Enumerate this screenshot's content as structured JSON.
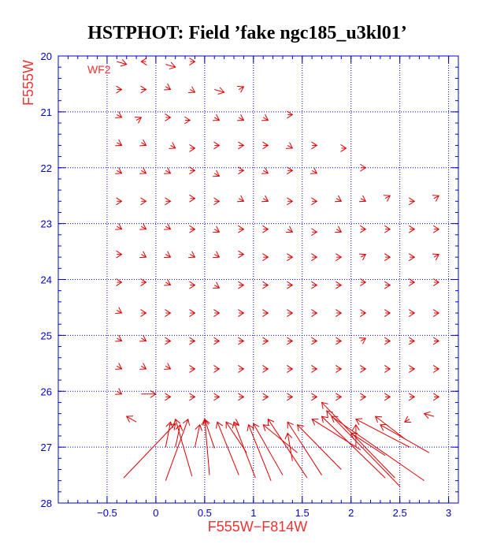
{
  "colors": {
    "axis": "#0000cc",
    "data": "#dd0000",
    "label": "#ee3333",
    "title": "#000000",
    "background": "#ffffff"
  },
  "chart_data": {
    "type": "scatter",
    "title": "HSTPHOT: Field ’fake ngc185_u3kl01’",
    "xlabel": "F555W−F814W",
    "ylabel": "F555W",
    "annotation": "WF2",
    "xlim": [
      -1.0,
      3.1
    ],
    "ylim": [
      28,
      20
    ],
    "y_inverted": true,
    "grid": true,
    "grid_style": "dotted",
    "xticks": [
      -0.5,
      0,
      0.5,
      1,
      1.5,
      2,
      2.5,
      3
    ],
    "xtick_labels": [
      "−0.5",
      "0",
      "0.5",
      "1",
      "1.5",
      "2",
      "2.5",
      "3"
    ],
    "yticks": [
      20,
      21,
      22,
      23,
      24,
      25,
      26,
      27,
      28
    ],
    "ytick_labels": [
      "20",
      "21",
      "22",
      "23",
      "24",
      "25",
      "26",
      "27",
      "28"
    ],
    "series_description": "Input-to-output offset vectors for artificial stars; each vector runs from the recovered (x1,y1) to the input (x2,y2) color-magnitude position",
    "vectors": [
      {
        "x1": -0.4,
        "y1": 20.1,
        "x2": -0.3,
        "y2": 20.15
      },
      {
        "x1": -0.1,
        "y1": 20.1,
        "x2": -0.15,
        "y2": 20.1
      },
      {
        "x1": 0.1,
        "y1": 20.15,
        "x2": 0.2,
        "y2": 20.2
      },
      {
        "x1": 0.35,
        "y1": 20.1,
        "x2": 0.4,
        "y2": 20.1
      },
      {
        "x1": -0.4,
        "y1": 20.6,
        "x2": -0.35,
        "y2": 20.6
      },
      {
        "x1": -0.15,
        "y1": 20.6,
        "x2": -0.1,
        "y2": 20.6
      },
      {
        "x1": 0.1,
        "y1": 20.55,
        "x2": 0.15,
        "y2": 20.6
      },
      {
        "x1": 0.35,
        "y1": 20.6,
        "x2": 0.4,
        "y2": 20.65
      },
      {
        "x1": 0.6,
        "y1": 20.6,
        "x2": 0.7,
        "y2": 20.65
      },
      {
        "x1": 0.85,
        "y1": 20.6,
        "x2": 0.9,
        "y2": 20.55
      },
      {
        "x1": -0.4,
        "y1": 21.05,
        "x2": -0.35,
        "y2": 21.1
      },
      {
        "x1": -0.2,
        "y1": 21.15,
        "x2": -0.15,
        "y2": 21.1
      },
      {
        "x1": 0.1,
        "y1": 21.1,
        "x2": 0.15,
        "y2": 21.1
      },
      {
        "x1": 0.3,
        "y1": 21.15,
        "x2": 0.35,
        "y2": 21.15
      },
      {
        "x1": 0.6,
        "y1": 21.1,
        "x2": 0.65,
        "y2": 21.15
      },
      {
        "x1": 0.85,
        "y1": 21.1,
        "x2": 0.9,
        "y2": 21.15
      },
      {
        "x1": 1.1,
        "y1": 21.1,
        "x2": 1.15,
        "y2": 21.15
      },
      {
        "x1": 1.35,
        "y1": 21.05,
        "x2": 1.4,
        "y2": 21.05
      },
      {
        "x1": -0.4,
        "y1": 21.55,
        "x2": -0.35,
        "y2": 21.6
      },
      {
        "x1": -0.15,
        "y1": 21.55,
        "x2": -0.1,
        "y2": 21.6
      },
      {
        "x1": 0.15,
        "y1": 21.6,
        "x2": 0.2,
        "y2": 21.65
      },
      {
        "x1": 0.35,
        "y1": 21.65,
        "x2": 0.4,
        "y2": 21.65
      },
      {
        "x1": 0.6,
        "y1": 21.6,
        "x2": 0.65,
        "y2": 21.6
      },
      {
        "x1": 0.85,
        "y1": 21.6,
        "x2": 0.9,
        "y2": 21.6
      },
      {
        "x1": 1.1,
        "y1": 21.6,
        "x2": 1.15,
        "y2": 21.6
      },
      {
        "x1": 1.35,
        "y1": 21.6,
        "x2": 1.4,
        "y2": 21.65
      },
      {
        "x1": 1.6,
        "y1": 21.6,
        "x2": 1.65,
        "y2": 21.6
      },
      {
        "x1": 1.9,
        "y1": 21.65,
        "x2": 1.95,
        "y2": 21.65
      },
      {
        "x1": -0.4,
        "y1": 22.05,
        "x2": -0.35,
        "y2": 22.1
      },
      {
        "x1": -0.15,
        "y1": 22.05,
        "x2": -0.1,
        "y2": 22.1
      },
      {
        "x1": 0.1,
        "y1": 22.05,
        "x2": 0.15,
        "y2": 22.1
      },
      {
        "x1": 0.35,
        "y1": 22.05,
        "x2": 0.4,
        "y2": 22.05
      },
      {
        "x1": 0.6,
        "y1": 22.1,
        "x2": 0.65,
        "y2": 22.15
      },
      {
        "x1": 0.85,
        "y1": 22.05,
        "x2": 0.9,
        "y2": 22.05
      },
      {
        "x1": 1.1,
        "y1": 22.05,
        "x2": 1.15,
        "y2": 22.1
      },
      {
        "x1": 1.35,
        "y1": 22.05,
        "x2": 1.4,
        "y2": 22.05
      },
      {
        "x1": 1.6,
        "y1": 22.05,
        "x2": 1.65,
        "y2": 22.1
      },
      {
        "x1": 2.1,
        "y1": 22.0,
        "x2": 2.15,
        "y2": 22.0
      },
      {
        "x1": -0.4,
        "y1": 22.6,
        "x2": -0.35,
        "y2": 22.6
      },
      {
        "x1": -0.15,
        "y1": 22.6,
        "x2": -0.1,
        "y2": 22.6
      },
      {
        "x1": 0.1,
        "y1": 22.6,
        "x2": 0.15,
        "y2": 22.6
      },
      {
        "x1": 0.35,
        "y1": 22.55,
        "x2": 0.4,
        "y2": 22.55
      },
      {
        "x1": 0.6,
        "y1": 22.6,
        "x2": 0.65,
        "y2": 22.6
      },
      {
        "x1": 0.85,
        "y1": 22.55,
        "x2": 0.9,
        "y2": 22.6
      },
      {
        "x1": 1.1,
        "y1": 22.55,
        "x2": 1.15,
        "y2": 22.6
      },
      {
        "x1": 1.35,
        "y1": 22.6,
        "x2": 1.4,
        "y2": 22.6
      },
      {
        "x1": 1.6,
        "y1": 22.6,
        "x2": 1.65,
        "y2": 22.6
      },
      {
        "x1": 1.85,
        "y1": 22.55,
        "x2": 1.9,
        "y2": 22.6
      },
      {
        "x1": 2.1,
        "y1": 22.55,
        "x2": 2.15,
        "y2": 22.6
      },
      {
        "x1": 2.35,
        "y1": 22.55,
        "x2": 2.4,
        "y2": 22.5
      },
      {
        "x1": 2.6,
        "y1": 22.6,
        "x2": 2.65,
        "y2": 22.6
      },
      {
        "x1": 2.85,
        "y1": 22.55,
        "x2": 2.9,
        "y2": 22.5
      },
      {
        "x1": -0.4,
        "y1": 23.05,
        "x2": -0.35,
        "y2": 23.1
      },
      {
        "x1": -0.15,
        "y1": 23.05,
        "x2": -0.1,
        "y2": 23.1
      },
      {
        "x1": 0.1,
        "y1": 23.05,
        "x2": 0.15,
        "y2": 23.1
      },
      {
        "x1": 0.35,
        "y1": 23.1,
        "x2": 0.4,
        "y2": 23.1
      },
      {
        "x1": 0.6,
        "y1": 23.1,
        "x2": 0.65,
        "y2": 23.15
      },
      {
        "x1": 0.85,
        "y1": 23.1,
        "x2": 0.9,
        "y2": 23.1
      },
      {
        "x1": 1.1,
        "y1": 23.1,
        "x2": 1.15,
        "y2": 23.1
      },
      {
        "x1": 1.35,
        "y1": 23.1,
        "x2": 1.4,
        "y2": 23.15
      },
      {
        "x1": 1.6,
        "y1": 23.15,
        "x2": 1.65,
        "y2": 23.15
      },
      {
        "x1": 1.85,
        "y1": 23.1,
        "x2": 1.9,
        "y2": 23.15
      },
      {
        "x1": 2.1,
        "y1": 23.1,
        "x2": 2.15,
        "y2": 23.1
      },
      {
        "x1": 2.35,
        "y1": 23.1,
        "x2": 2.4,
        "y2": 23.1
      },
      {
        "x1": 2.6,
        "y1": 23.1,
        "x2": 2.65,
        "y2": 23.1
      },
      {
        "x1": 2.85,
        "y1": 23.1,
        "x2": 2.9,
        "y2": 23.1
      },
      {
        "x1": -0.4,
        "y1": 23.55,
        "x2": -0.35,
        "y2": 23.55
      },
      {
        "x1": -0.15,
        "y1": 23.55,
        "x2": -0.1,
        "y2": 23.6
      },
      {
        "x1": 0.1,
        "y1": 23.55,
        "x2": 0.15,
        "y2": 23.6
      },
      {
        "x1": 0.35,
        "y1": 23.55,
        "x2": 0.4,
        "y2": 23.6
      },
      {
        "x1": 0.6,
        "y1": 23.55,
        "x2": 0.65,
        "y2": 23.6
      },
      {
        "x1": 0.85,
        "y1": 23.55,
        "x2": 0.9,
        "y2": 23.55
      },
      {
        "x1": 1.1,
        "y1": 23.6,
        "x2": 1.15,
        "y2": 23.6
      },
      {
        "x1": 1.35,
        "y1": 23.6,
        "x2": 1.4,
        "y2": 23.6
      },
      {
        "x1": 1.6,
        "y1": 23.6,
        "x2": 1.65,
        "y2": 23.6
      },
      {
        "x1": 1.85,
        "y1": 23.6,
        "x2": 1.9,
        "y2": 23.6
      },
      {
        "x1": 2.1,
        "y1": 23.6,
        "x2": 2.15,
        "y2": 23.55
      },
      {
        "x1": 2.35,
        "y1": 23.6,
        "x2": 2.4,
        "y2": 23.6
      },
      {
        "x1": 2.6,
        "y1": 23.6,
        "x2": 2.65,
        "y2": 23.6
      },
      {
        "x1": 2.85,
        "y1": 23.6,
        "x2": 2.9,
        "y2": 23.55
      },
      {
        "x1": -0.4,
        "y1": 24.05,
        "x2": -0.35,
        "y2": 24.05
      },
      {
        "x1": -0.15,
        "y1": 24.05,
        "x2": -0.1,
        "y2": 24.05
      },
      {
        "x1": 0.1,
        "y1": 24.05,
        "x2": 0.15,
        "y2": 24.1
      },
      {
        "x1": 0.35,
        "y1": 24.1,
        "x2": 0.4,
        "y2": 24.1
      },
      {
        "x1": 0.6,
        "y1": 24.1,
        "x2": 0.65,
        "y2": 24.15
      },
      {
        "x1": 0.85,
        "y1": 24.1,
        "x2": 0.9,
        "y2": 24.1
      },
      {
        "x1": 1.1,
        "y1": 24.1,
        "x2": 1.15,
        "y2": 24.1
      },
      {
        "x1": 1.35,
        "y1": 24.1,
        "x2": 1.4,
        "y2": 24.1
      },
      {
        "x1": 1.6,
        "y1": 24.1,
        "x2": 1.65,
        "y2": 24.1
      },
      {
        "x1": 1.85,
        "y1": 24.1,
        "x2": 1.9,
        "y2": 24.1
      },
      {
        "x1": 2.1,
        "y1": 24.05,
        "x2": 2.15,
        "y2": 24.05
      },
      {
        "x1": 2.35,
        "y1": 24.1,
        "x2": 2.4,
        "y2": 24.1
      },
      {
        "x1": 2.6,
        "y1": 24.05,
        "x2": 2.65,
        "y2": 24.05
      },
      {
        "x1": 2.85,
        "y1": 24.05,
        "x2": 2.9,
        "y2": 24.05
      },
      {
        "x1": -0.4,
        "y1": 24.55,
        "x2": -0.35,
        "y2": 24.6
      },
      {
        "x1": -0.15,
        "y1": 24.6,
        "x2": -0.1,
        "y2": 24.6
      },
      {
        "x1": 0.1,
        "y1": 24.6,
        "x2": 0.15,
        "y2": 24.6
      },
      {
        "x1": 0.35,
        "y1": 24.6,
        "x2": 0.4,
        "y2": 24.6
      },
      {
        "x1": 0.6,
        "y1": 24.6,
        "x2": 0.65,
        "y2": 24.6
      },
      {
        "x1": 0.85,
        "y1": 24.6,
        "x2": 0.9,
        "y2": 24.6
      },
      {
        "x1": 1.1,
        "y1": 24.6,
        "x2": 1.15,
        "y2": 24.6
      },
      {
        "x1": 1.35,
        "y1": 24.6,
        "x2": 1.4,
        "y2": 24.6
      },
      {
        "x1": 1.6,
        "y1": 24.6,
        "x2": 1.65,
        "y2": 24.6
      },
      {
        "x1": 1.85,
        "y1": 24.6,
        "x2": 1.9,
        "y2": 24.6
      },
      {
        "x1": 2.1,
        "y1": 24.6,
        "x2": 2.15,
        "y2": 24.6
      },
      {
        "x1": 2.35,
        "y1": 24.6,
        "x2": 2.4,
        "y2": 24.6
      },
      {
        "x1": 2.6,
        "y1": 24.6,
        "x2": 2.65,
        "y2": 24.6
      },
      {
        "x1": 2.85,
        "y1": 24.6,
        "x2": 2.9,
        "y2": 24.6
      },
      {
        "x1": -0.4,
        "y1": 25.05,
        "x2": -0.35,
        "y2": 25.1
      },
      {
        "x1": -0.15,
        "y1": 25.05,
        "x2": -0.1,
        "y2": 25.1
      },
      {
        "x1": 0.1,
        "y1": 25.1,
        "x2": 0.15,
        "y2": 25.1
      },
      {
        "x1": 0.35,
        "y1": 25.1,
        "x2": 0.4,
        "y2": 25.1
      },
      {
        "x1": 0.6,
        "y1": 25.1,
        "x2": 0.65,
        "y2": 25.1
      },
      {
        "x1": 0.85,
        "y1": 25.1,
        "x2": 0.9,
        "y2": 25.1
      },
      {
        "x1": 1.1,
        "y1": 25.1,
        "x2": 1.15,
        "y2": 25.1
      },
      {
        "x1": 1.35,
        "y1": 25.1,
        "x2": 1.4,
        "y2": 25.1
      },
      {
        "x1": 1.6,
        "y1": 25.1,
        "x2": 1.65,
        "y2": 25.1
      },
      {
        "x1": 1.85,
        "y1": 25.1,
        "x2": 1.9,
        "y2": 25.1
      },
      {
        "x1": 2.1,
        "y1": 25.1,
        "x2": 2.15,
        "y2": 25.05
      },
      {
        "x1": 2.35,
        "y1": 25.1,
        "x2": 2.4,
        "y2": 25.1
      },
      {
        "x1": 2.6,
        "y1": 25.1,
        "x2": 2.65,
        "y2": 25.1
      },
      {
        "x1": 2.85,
        "y1": 25.1,
        "x2": 2.9,
        "y2": 25.1
      },
      {
        "x1": -0.4,
        "y1": 25.55,
        "x2": -0.35,
        "y2": 25.6
      },
      {
        "x1": -0.15,
        "y1": 25.55,
        "x2": -0.1,
        "y2": 25.6
      },
      {
        "x1": 0.1,
        "y1": 25.55,
        "x2": 0.15,
        "y2": 25.6
      },
      {
        "x1": 0.35,
        "y1": 25.6,
        "x2": 0.4,
        "y2": 25.6
      },
      {
        "x1": 0.6,
        "y1": 25.6,
        "x2": 0.65,
        "y2": 25.6
      },
      {
        "x1": 0.85,
        "y1": 25.6,
        "x2": 0.9,
        "y2": 25.6
      },
      {
        "x1": 1.1,
        "y1": 25.6,
        "x2": 1.15,
        "y2": 25.6
      },
      {
        "x1": 1.35,
        "y1": 25.6,
        "x2": 1.4,
        "y2": 25.6
      },
      {
        "x1": 1.6,
        "y1": 25.6,
        "x2": 1.65,
        "y2": 25.6
      },
      {
        "x1": 1.85,
        "y1": 25.6,
        "x2": 1.9,
        "y2": 25.6
      },
      {
        "x1": 2.1,
        "y1": 25.6,
        "x2": 2.15,
        "y2": 25.6
      },
      {
        "x1": 2.35,
        "y1": 25.6,
        "x2": 2.4,
        "y2": 25.6
      },
      {
        "x1": 2.6,
        "y1": 25.6,
        "x2": 2.65,
        "y2": 25.6
      },
      {
        "x1": 2.85,
        "y1": 25.6,
        "x2": 2.9,
        "y2": 25.6
      },
      {
        "x1": -0.4,
        "y1": 26.0,
        "x2": -0.35,
        "y2": 26.05
      },
      {
        "x1": -0.15,
        "y1": 26.05,
        "x2": 0.0,
        "y2": 26.05
      },
      {
        "x1": 0.1,
        "y1": 26.1,
        "x2": 0.15,
        "y2": 26.1
      },
      {
        "x1": 0.35,
        "y1": 26.1,
        "x2": 0.4,
        "y2": 26.1
      },
      {
        "x1": 0.6,
        "y1": 26.1,
        "x2": 0.65,
        "y2": 26.1
      },
      {
        "x1": 0.85,
        "y1": 26.1,
        "x2": 0.9,
        "y2": 26.1
      },
      {
        "x1": 1.1,
        "y1": 26.1,
        "x2": 1.15,
        "y2": 26.1
      },
      {
        "x1": 1.35,
        "y1": 26.1,
        "x2": 1.4,
        "y2": 26.1
      },
      {
        "x1": 1.6,
        "y1": 26.1,
        "x2": 1.65,
        "y2": 26.1
      },
      {
        "x1": 1.85,
        "y1": 26.1,
        "x2": 1.9,
        "y2": 26.1
      },
      {
        "x1": 2.1,
        "y1": 26.1,
        "x2": 2.15,
        "y2": 26.1
      },
      {
        "x1": 2.35,
        "y1": 26.1,
        "x2": 2.4,
        "y2": 26.1
      },
      {
        "x1": 2.6,
        "y1": 26.1,
        "x2": 2.65,
        "y2": 26.1
      },
      {
        "x1": 2.85,
        "y1": 26.1,
        "x2": 2.9,
        "y2": 26.1
      },
      {
        "x1": -0.2,
        "y1": 26.55,
        "x2": -0.3,
        "y2": 26.45
      },
      {
        "x1": 0.8,
        "y1": 26.55,
        "x2": 0.85,
        "y2": 26.6
      },
      {
        "x1": 2.85,
        "y1": 26.45,
        "x2": 2.75,
        "y2": 26.4
      },
      {
        "x1": 2.6,
        "y1": 26.5,
        "x2": 2.55,
        "y2": 26.55
      },
      {
        "x1": -0.33,
        "y1": 27.55,
        "x2": 0.2,
        "y2": 26.58
      },
      {
        "x1": 0.1,
        "y1": 27.6,
        "x2": 0.33,
        "y2": 26.5
      },
      {
        "x1": 0.37,
        "y1": 27.52,
        "x2": 0.2,
        "y2": 26.5
      },
      {
        "x1": 0.1,
        "y1": 27.0,
        "x2": 0.15,
        "y2": 26.55
      },
      {
        "x1": 0.2,
        "y1": 27.0,
        "x2": 0.25,
        "y2": 26.6
      },
      {
        "x1": 0.4,
        "y1": 27.0,
        "x2": 0.45,
        "y2": 26.6
      },
      {
        "x1": 0.6,
        "y1": 27.02,
        "x2": 0.5,
        "y2": 26.5
      },
      {
        "x1": 0.55,
        "y1": 27.5,
        "x2": 0.5,
        "y2": 26.5
      },
      {
        "x1": 0.85,
        "y1": 27.5,
        "x2": 0.63,
        "y2": 26.55
      },
      {
        "x1": 1.02,
        "y1": 27.55,
        "x2": 0.8,
        "y2": 26.55
      },
      {
        "x1": 0.93,
        "y1": 27.1,
        "x2": 0.72,
        "y2": 26.55
      },
      {
        "x1": 1.18,
        "y1": 27.6,
        "x2": 0.95,
        "y2": 26.6
      },
      {
        "x1": 1.3,
        "y1": 27.5,
        "x2": 1.0,
        "y2": 26.58
      },
      {
        "x1": 1.55,
        "y1": 27.55,
        "x2": 1.15,
        "y2": 26.5
      },
      {
        "x1": 1.7,
        "y1": 27.5,
        "x2": 1.35,
        "y2": 26.55
      },
      {
        "x1": 1.45,
        "y1": 27.1,
        "x2": 1.1,
        "y2": 26.6
      },
      {
        "x1": 1.4,
        "y1": 27.25,
        "x2": 1.35,
        "y2": 26.75
      },
      {
        "x1": 1.9,
        "y1": 27.4,
        "x2": 1.45,
        "y2": 26.6
      },
      {
        "x1": 2.1,
        "y1": 27.05,
        "x2": 1.6,
        "y2": 26.5
      },
      {
        "x1": 2.35,
        "y1": 27.55,
        "x2": 1.7,
        "y2": 26.45
      },
      {
        "x1": 2.5,
        "y1": 27.7,
        "x2": 1.75,
        "y2": 26.35
      },
      {
        "x1": 2.45,
        "y1": 27.55,
        "x2": 1.7,
        "y2": 26.2
      },
      {
        "x1": 2.75,
        "y1": 27.6,
        "x2": 1.8,
        "y2": 26.45
      },
      {
        "x1": 2.35,
        "y1": 27.15,
        "x2": 2.0,
        "y2": 26.75
      },
      {
        "x1": 2.6,
        "y1": 27.0,
        "x2": 2.05,
        "y2": 26.5
      },
      {
        "x1": 2.8,
        "y1": 27.1,
        "x2": 2.3,
        "y2": 26.6
      },
      {
        "x1": 2.55,
        "y1": 26.85,
        "x2": 2.25,
        "y2": 26.45
      },
      {
        "x1": 2.05,
        "y1": 27.0,
        "x2": 2.05,
        "y2": 26.6
      }
    ]
  }
}
